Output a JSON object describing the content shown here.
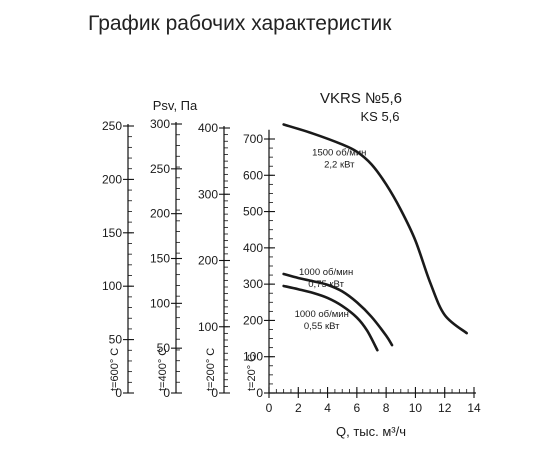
{
  "page_title": "График рабочих характеристик",
  "chart_data": {
    "type": "line",
    "model_lines": [
      "VKRS №5,6",
      "KS 5,6"
    ],
    "xlabel": "Q, тыс. м³/ч",
    "xlim": [
      0,
      14
    ],
    "x_ticks": [
      0,
      2,
      4,
      6,
      8,
      10,
      12,
      14
    ],
    "y_axes": [
      {
        "temp_label": "t=600° C",
        "ylim": [
          0,
          250
        ],
        "ticks": [
          0,
          50,
          100,
          150,
          200,
          250
        ]
      },
      {
        "temp_label": "t=400° C",
        "ylim": [
          0,
          300
        ],
        "ticks": [
          0,
          50,
          100,
          150,
          200,
          250,
          300
        ]
      },
      {
        "temp_label": "t=200° C",
        "ylim": [
          0,
          400
        ],
        "ticks": [
          0,
          100,
          200,
          300,
          400
        ]
      },
      {
        "temp_label": "t=20° C",
        "ylim": [
          0,
          720
        ],
        "ticks": [
          0,
          100,
          200,
          300,
          400,
          500,
          600,
          700
        ],
        "ylabel": "Psv, Па"
      }
    ],
    "ylabel": "Psv, Па",
    "series": [
      {
        "name_lines": [
          "1500 об/мин",
          "2,2 кВт"
        ],
        "label_at": [
          4.8,
          655
        ],
        "points": [
          [
            1,
            740
          ],
          [
            3,
            715
          ],
          [
            5,
            685
          ],
          [
            6,
            665
          ],
          [
            7,
            630
          ],
          [
            8,
            575
          ],
          [
            9,
            505
          ],
          [
            10,
            420
          ],
          [
            11,
            305
          ],
          [
            12,
            215
          ],
          [
            13.5,
            165
          ]
        ]
      },
      {
        "name_lines": [
          "1000 об/мин",
          "0,75 кВт"
        ],
        "label_at": [
          3.9,
          325
        ],
        "points": [
          [
            1,
            328
          ],
          [
            2,
            317
          ],
          [
            3,
            308
          ],
          [
            4,
            298
          ],
          [
            5,
            280
          ],
          [
            6,
            250
          ],
          [
            7,
            210
          ],
          [
            8,
            158
          ],
          [
            8.4,
            132
          ]
        ]
      },
      {
        "name_lines": [
          "1000 об/мин",
          "0,55 кВт"
        ],
        "label_at": [
          3.6,
          210
        ],
        "points": [
          [
            1,
            295
          ],
          [
            2,
            286
          ],
          [
            3,
            276
          ],
          [
            4,
            262
          ],
          [
            5,
            240
          ],
          [
            6,
            208
          ],
          [
            6.7,
            172
          ],
          [
            7.4,
            118
          ]
        ]
      }
    ],
    "grid": false,
    "legend": "none"
  }
}
